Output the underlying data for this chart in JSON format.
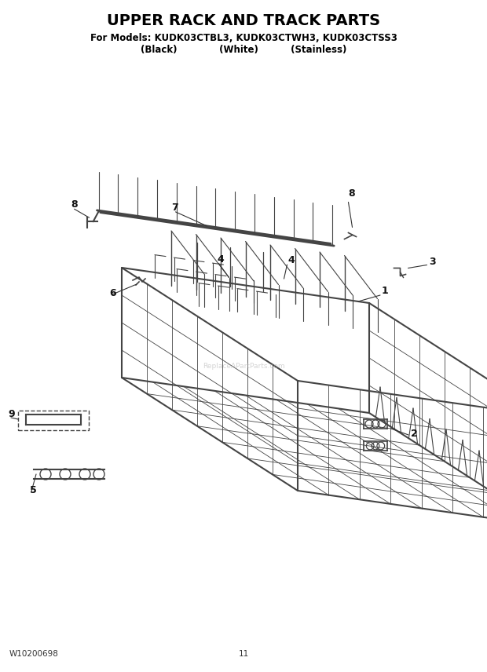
{
  "title": "UPPER RACK AND TRACK PARTS",
  "subtitle_line1": "For Models: KUDK03CTBL3, KUDK03CTWH3, KUDK03CTSS3",
  "subtitle_line2": "(Black)             (White)          (Stainless)",
  "footer_left": "W10200698",
  "footer_center": "11",
  "bg_color": "#ffffff",
  "title_fontsize": 14,
  "subtitle_fontsize": 8.5,
  "wire_color": "#444444",
  "label_color": "#111111",
  "watermark": "ReplaceAPartParts.com"
}
